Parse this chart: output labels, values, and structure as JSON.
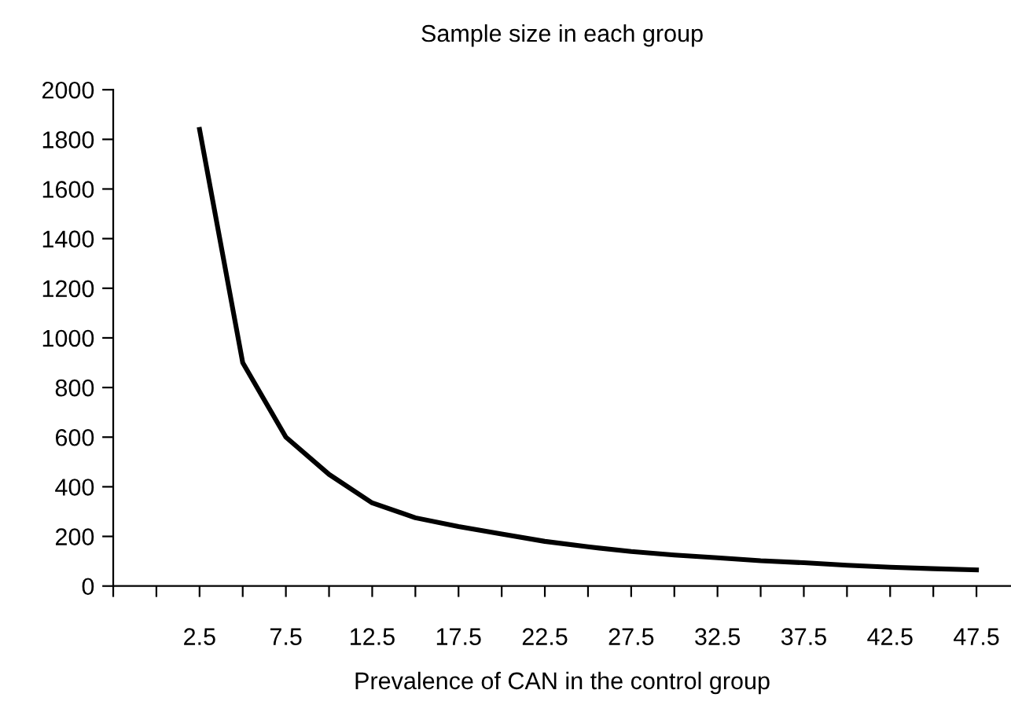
{
  "chart_data": {
    "type": "line",
    "title": "Sample size in each group",
    "xlabel": "Prevalence of CAN in the control group",
    "x": [
      2.5,
      5,
      7.5,
      10,
      12.5,
      15,
      17.5,
      20,
      22.5,
      25,
      27.5,
      30,
      32.5,
      35,
      37.5,
      40,
      42.5,
      45,
      47.5
    ],
    "series": [
      {
        "color": "#000000",
        "values": [
          1840,
          900,
          600,
          450,
          335,
          275,
          240,
          210,
          180,
          158,
          139,
          125,
          114,
          102,
          94,
          84,
          76,
          70,
          65
        ]
      }
    ],
    "xlim": [
      -2.5,
      49.5
    ],
    "xticks": [
      {
        "value": -2.5,
        "label": null
      },
      {
        "value": 0,
        "label": null
      },
      2.5,
      {
        "value": 5,
        "label": null
      },
      7.5,
      {
        "value": 10,
        "label": null
      },
      12.5,
      {
        "value": 15,
        "label": null
      },
      17.5,
      {
        "value": 20,
        "label": null
      },
      22.5,
      {
        "value": 25,
        "label": null
      },
      27.5,
      {
        "value": 30,
        "label": null
      },
      32.5,
      {
        "value": 35,
        "label": null
      },
      37.5,
      {
        "value": 40,
        "label": null
      },
      42.5,
      {
        "value": 45,
        "label": null
      },
      47.5
    ],
    "ylim": [
      0,
      2000
    ],
    "yticks": [
      0,
      200,
      400,
      600,
      800,
      1000,
      1200,
      1400,
      1600,
      1800,
      2000
    ],
    "grid": false,
    "marker": "none",
    "line_style": "solid"
  }
}
